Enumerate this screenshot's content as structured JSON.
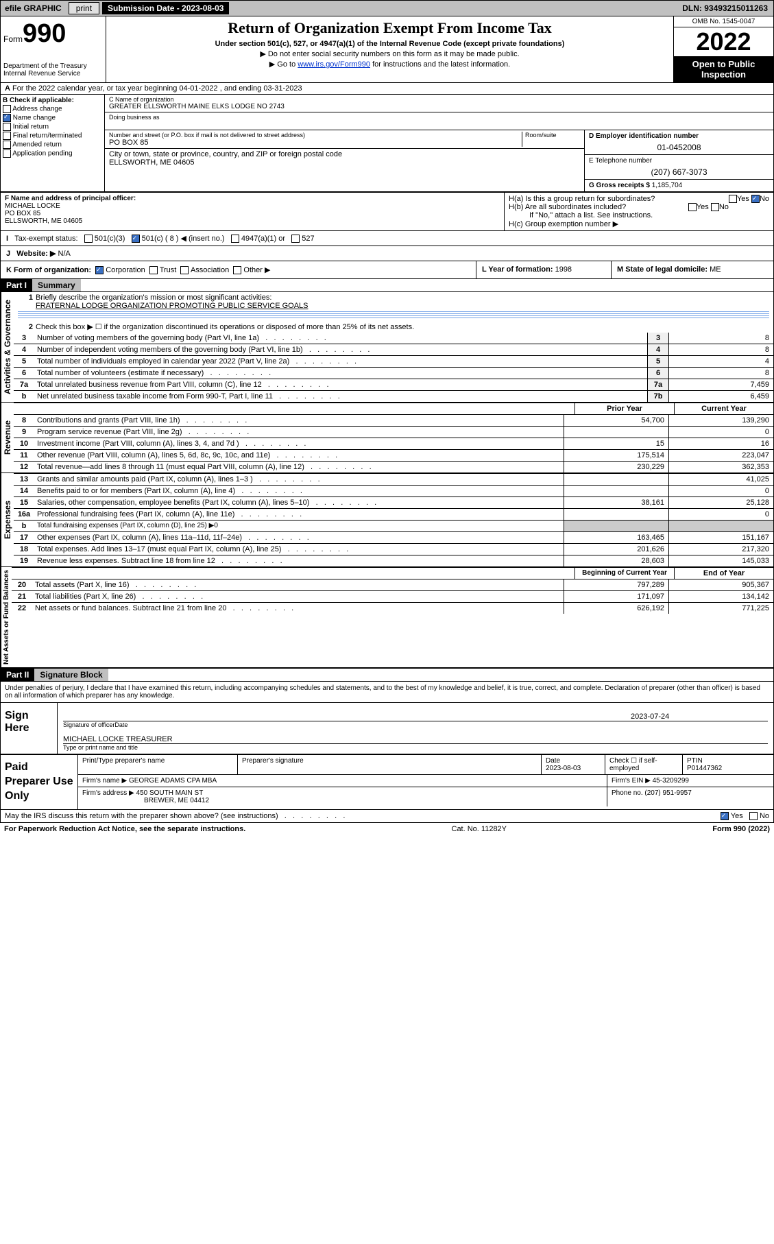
{
  "topbar": {
    "efile": "efile GRAPHIC",
    "print": "print",
    "subdate_label": "Submission Date - 2023-08-03",
    "dln": "DLN: 93493215011263"
  },
  "header": {
    "form_prefix": "Form",
    "form_number": "990",
    "dept": "Department of the Treasury Internal Revenue Service",
    "title": "Return of Organization Exempt From Income Tax",
    "sub1": "Under section 501(c), 527, or 4947(a)(1) of the Internal Revenue Code (except private foundations)",
    "sub2": "▶ Do not enter social security numbers on this form as it may be made public.",
    "sub3_pre": "▶ Go to ",
    "sub3_link": "www.irs.gov/Form990",
    "sub3_post": " for instructions and the latest information.",
    "omb": "OMB No. 1545-0047",
    "year": "2022",
    "open": "Open to Public Inspection"
  },
  "periodA": "For the 2022 calendar year, or tax year beginning 04-01-2022    , and ending 03-31-2023",
  "boxB": {
    "label": "B Check if applicable:",
    "opts": [
      "Address change",
      "Name change",
      "Initial return",
      "Final return/terminated",
      "Amended return",
      "Application pending"
    ],
    "checked_idx": 1
  },
  "boxC": {
    "name_label": "C Name of organization",
    "name": "GREATER ELLSWORTH MAINE ELKS LODGE NO 2743",
    "dba_label": "Doing business as",
    "street_label": "Number and street (or P.O. box if mail is not delivered to street address)",
    "room_label": "Room/suite",
    "street": "PO BOX 85",
    "city_label": "City or town, state or province, country, and ZIP or foreign postal code",
    "city": "ELLSWORTH, ME  04605"
  },
  "boxD": {
    "label": "D Employer identification number",
    "val": "01-0452008"
  },
  "boxE": {
    "label": "E Telephone number",
    "val": "(207) 667-3073"
  },
  "boxG": {
    "label": "G Gross receipts $",
    "val": "1,185,704"
  },
  "boxF": {
    "label": "F Name and address of principal officer:",
    "lines": [
      "MICHAEL LOCKE",
      "PO BOX 85",
      "ELLSWORTH, ME  04605"
    ]
  },
  "boxH": {
    "a": "H(a)  Is this a group return for subordinates?",
    "b": "H(b)  Are all subordinates included?",
    "note": "If \"No,\" attach a list. See instructions.",
    "c": "H(c)  Group exemption number ▶"
  },
  "statusI": "Tax-exempt status:",
  "status_opts": [
    "501(c)(3)",
    "501(c) ( 8 ) ◀ (insert no.)",
    "4947(a)(1) or",
    "527"
  ],
  "websiteJ": {
    "label": "Website: ▶",
    "val": "N/A"
  },
  "boxK": "K Form of organization:",
  "k_opts": [
    "Corporation",
    "Trust",
    "Association",
    "Other ▶"
  ],
  "boxL": {
    "label": "L Year of formation:",
    "val": "1998"
  },
  "boxM": {
    "label": "M State of legal domicile:",
    "val": "ME"
  },
  "partI": {
    "tag": "Part I",
    "title": "Summary",
    "section_labels": [
      "Activities & Governance",
      "Revenue",
      "Expenses",
      "Net Assets or Fund Balances"
    ],
    "line1": "Briefly describe the organization's mission or most significant activities:",
    "mission": "FRATERNAL LODGE ORGANIZATION PROMOTING PUBLIC SERVICE GOALS",
    "line2": "Check this box ▶ ☐  if the organization discontinued its operations or disposed of more than 25% of its net assets.",
    "gov_rows": [
      {
        "n": "3",
        "d": "Number of voting members of the governing body (Part VI, line 1a)",
        "b": "3",
        "v": "8"
      },
      {
        "n": "4",
        "d": "Number of independent voting members of the governing body (Part VI, line 1b)",
        "b": "4",
        "v": "8"
      },
      {
        "n": "5",
        "d": "Total number of individuals employed in calendar year 2022 (Part V, line 2a)",
        "b": "5",
        "v": "4"
      },
      {
        "n": "6",
        "d": "Total number of volunteers (estimate if necessary)",
        "b": "6",
        "v": "8"
      },
      {
        "n": "7a",
        "d": "Total unrelated business revenue from Part VIII, column (C), line 12",
        "b": "7a",
        "v": "7,459"
      },
      {
        "n": "b",
        "d": "Net unrelated business taxable income from Form 990-T, Part I, line 11",
        "b": "7b",
        "v": "6,459"
      }
    ],
    "col_head1": "Prior Year",
    "col_head2": "Current Year",
    "rev_rows": [
      {
        "n": "8",
        "d": "Contributions and grants (Part VIII, line 1h)",
        "p": "54,700",
        "c": "139,290"
      },
      {
        "n": "9",
        "d": "Program service revenue (Part VIII, line 2g)",
        "p": "",
        "c": "0"
      },
      {
        "n": "10",
        "d": "Investment income (Part VIII, column (A), lines 3, 4, and 7d )",
        "p": "15",
        "c": "16"
      },
      {
        "n": "11",
        "d": "Other revenue (Part VIII, column (A), lines 5, 6d, 8c, 9c, 10c, and 11e)",
        "p": "175,514",
        "c": "223,047"
      },
      {
        "n": "12",
        "d": "Total revenue—add lines 8 through 11 (must equal Part VIII, column (A), line 12)",
        "p": "230,229",
        "c": "362,353"
      }
    ],
    "exp_rows": [
      {
        "n": "13",
        "d": "Grants and similar amounts paid (Part IX, column (A), lines 1–3 )",
        "p": "",
        "c": "41,025"
      },
      {
        "n": "14",
        "d": "Benefits paid to or for members (Part IX, column (A), line 4)",
        "p": "",
        "c": "0"
      },
      {
        "n": "15",
        "d": "Salaries, other compensation, employee benefits (Part IX, column (A), lines 5–10)",
        "p": "38,161",
        "c": "25,128"
      },
      {
        "n": "16a",
        "d": "Professional fundraising fees (Part IX, column (A), line 11e)",
        "p": "",
        "c": "0"
      },
      {
        "n": "b",
        "d": "Total fundraising expenses (Part IX, column (D), line 25) ▶0",
        "p": "—",
        "c": "—"
      },
      {
        "n": "17",
        "d": "Other expenses (Part IX, column (A), lines 11a–11d, 11f–24e)",
        "p": "163,465",
        "c": "151,167"
      },
      {
        "n": "18",
        "d": "Total expenses. Add lines 13–17 (must equal Part IX, column (A), line 25)",
        "p": "201,626",
        "c": "217,320"
      },
      {
        "n": "19",
        "d": "Revenue less expenses. Subtract line 18 from line 12",
        "p": "28,603",
        "c": "145,033"
      }
    ],
    "net_head1": "Beginning of Current Year",
    "net_head2": "End of Year",
    "net_rows": [
      {
        "n": "20",
        "d": "Total assets (Part X, line 16)",
        "p": "797,289",
        "c": "905,367"
      },
      {
        "n": "21",
        "d": "Total liabilities (Part X, line 26)",
        "p": "171,097",
        "c": "134,142"
      },
      {
        "n": "22",
        "d": "Net assets or fund balances. Subtract line 21 from line 20",
        "p": "626,192",
        "c": "771,225"
      }
    ]
  },
  "partII": {
    "tag": "Part II",
    "title": "Signature Block",
    "declare": "Under penalties of perjury, I declare that I have examined this return, including accompanying schedules and statements, and to the best of my knowledge and belief, it is true, correct, and complete. Declaration of preparer (other than officer) is based on all information of which preparer has any knowledge.",
    "sign_here": "Sign Here",
    "sig_officer": "Signature of officer",
    "sig_date_lbl": "Date",
    "sig_date": "2023-07-24",
    "sig_name": "MICHAEL LOCKE  TREASURER",
    "sig_name_lbl": "Type or print name and title",
    "paid_label": "Paid Preparer Use Only",
    "prep_cols": [
      "Print/Type preparer's name",
      "Preparer's signature",
      "Date",
      "",
      "PTIN"
    ],
    "prep_date": "2023-08-03",
    "prep_check": "Check ☐ if self-employed",
    "ptin": "P01447362",
    "firm_name_lbl": "Firm's name    ▶",
    "firm_name": "GEORGE ADAMS CPA MBA",
    "firm_ein_lbl": "Firm's EIN ▶",
    "firm_ein": "45-3209299",
    "firm_addr_lbl": "Firm's address ▶",
    "firm_addr1": "450 SOUTH MAIN ST",
    "firm_addr2": "BREWER, ME  04412",
    "phone_lbl": "Phone no.",
    "phone": "(207) 951-9957",
    "discuss": "May the IRS discuss this return with the preparer shown above? (see instructions)",
    "yes": "Yes",
    "no": "No"
  },
  "footer": {
    "left": "For Paperwork Reduction Act Notice, see the separate instructions.",
    "mid": "Cat. No. 11282Y",
    "right": "Form 990 (2022)"
  }
}
